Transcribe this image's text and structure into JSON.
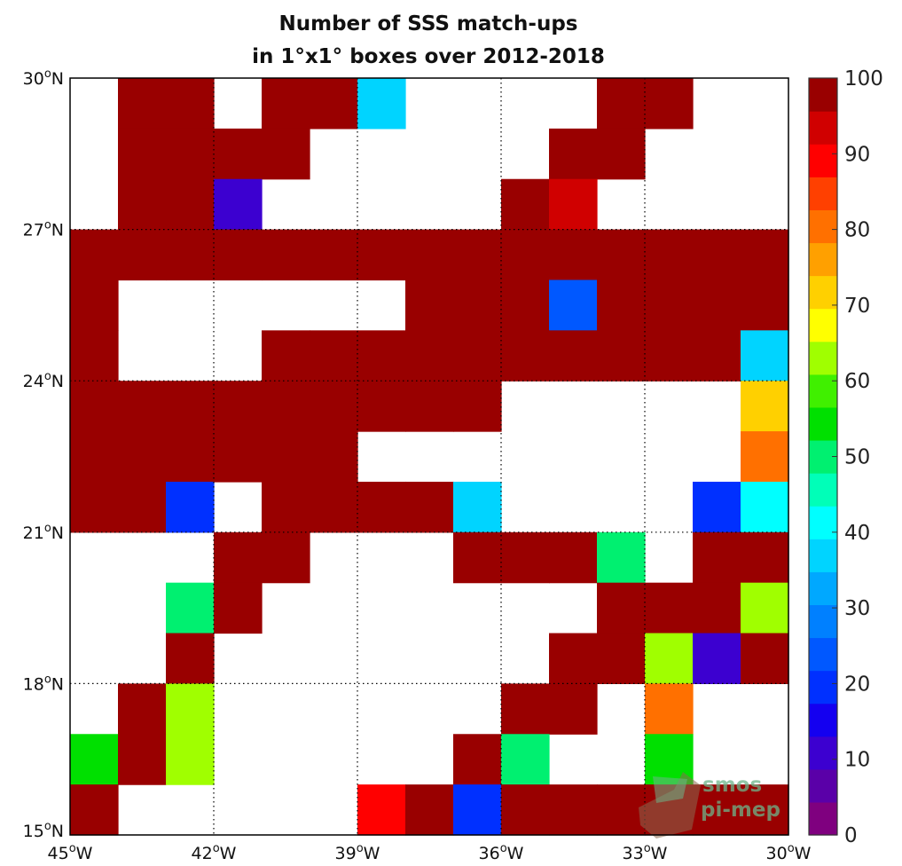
{
  "chart_data": {
    "type": "heatmap",
    "title": [
      "Number of SSS match-ups",
      "in 1°x1° boxes over 2012-2018"
    ],
    "xlabel": "",
    "ylabel": "",
    "x_range": [
      -45,
      -30
    ],
    "y_range": [
      15,
      30
    ],
    "grid": true,
    "x_ticks": [
      {
        "value": -45,
        "label": "45°W"
      },
      {
        "value": -42,
        "label": "42°W"
      },
      {
        "value": -39,
        "label": "39°W"
      },
      {
        "value": -36,
        "label": "36°W"
      },
      {
        "value": -33,
        "label": "33°W"
      },
      {
        "value": -30,
        "label": "30°W"
      }
    ],
    "y_ticks": [
      {
        "value": 15,
        "label": "15°N"
      },
      {
        "value": 18,
        "label": "18°N"
      },
      {
        "value": 21,
        "label": "21°N"
      },
      {
        "value": 24,
        "label": "24°N"
      },
      {
        "value": 27,
        "label": "27°N"
      },
      {
        "value": 30,
        "label": "30°N"
      }
    ],
    "colorbar": {
      "min": 0,
      "max": 100,
      "ticks": [
        0,
        10,
        20,
        30,
        40,
        50,
        60,
        70,
        80,
        90,
        100
      ],
      "colors": [
        "#7f007f",
        "#5a00a8",
        "#3c00d0",
        "#1400f0",
        "#0030ff",
        "#0058ff",
        "#0080ff",
        "#00a8ff",
        "#00d4ff",
        "#00ffff",
        "#00ffb8",
        "#00f070",
        "#00e000",
        "#40f000",
        "#a0ff00",
        "#ffff00",
        "#ffd000",
        "#ffa000",
        "#ff7000",
        "#ff4000",
        "#ff0000",
        "#d00000",
        "#990000"
      ]
    },
    "cell_note": "value = match-up count per 1°x1° box; lon/lat = lower-left corner; empty boxes omitted",
    "cells": [
      {
        "lon": -44,
        "lat": 29,
        "value": 100
      },
      {
        "lon": -43,
        "lat": 29,
        "value": 100
      },
      {
        "lon": -41,
        "lat": 29,
        "value": 100
      },
      {
        "lon": -40,
        "lat": 29,
        "value": 100
      },
      {
        "lon": -39,
        "lat": 29,
        "value": 38
      },
      {
        "lon": -34,
        "lat": 29,
        "value": 100
      },
      {
        "lon": -33,
        "lat": 29,
        "value": 100
      },
      {
        "lon": -44,
        "lat": 28,
        "value": 100
      },
      {
        "lon": -43,
        "lat": 28,
        "value": 100
      },
      {
        "lon": -42,
        "lat": 28,
        "value": 100
      },
      {
        "lon": -41,
        "lat": 28,
        "value": 100
      },
      {
        "lon": -35,
        "lat": 28,
        "value": 100
      },
      {
        "lon": -34,
        "lat": 28,
        "value": 100
      },
      {
        "lon": -44,
        "lat": 27,
        "value": 100
      },
      {
        "lon": -43,
        "lat": 27,
        "value": 100
      },
      {
        "lon": -42,
        "lat": 27,
        "value": 10
      },
      {
        "lon": -36,
        "lat": 27,
        "value": 100
      },
      {
        "lon": -35,
        "lat": 27,
        "value": 92
      },
      {
        "lon": -45,
        "lat": 26,
        "value": 100
      },
      {
        "lon": -44,
        "lat": 26,
        "value": 100
      },
      {
        "lon": -43,
        "lat": 26,
        "value": 100
      },
      {
        "lon": -42,
        "lat": 26,
        "value": 100
      },
      {
        "lon": -41,
        "lat": 26,
        "value": 100
      },
      {
        "lon": -40,
        "lat": 26,
        "value": 100
      },
      {
        "lon": -39,
        "lat": 26,
        "value": 100
      },
      {
        "lon": -38,
        "lat": 26,
        "value": 100
      },
      {
        "lon": -37,
        "lat": 26,
        "value": 100
      },
      {
        "lon": -36,
        "lat": 26,
        "value": 100
      },
      {
        "lon": -35,
        "lat": 26,
        "value": 100
      },
      {
        "lon": -34,
        "lat": 26,
        "value": 100
      },
      {
        "lon": -33,
        "lat": 26,
        "value": 100
      },
      {
        "lon": -32,
        "lat": 26,
        "value": 100
      },
      {
        "lon": -31,
        "lat": 26,
        "value": 100
      },
      {
        "lon": -45,
        "lat": 25,
        "value": 100
      },
      {
        "lon": -38,
        "lat": 25,
        "value": 100
      },
      {
        "lon": -37,
        "lat": 25,
        "value": 100
      },
      {
        "lon": -36,
        "lat": 25,
        "value": 100
      },
      {
        "lon": -35,
        "lat": 25,
        "value": 25
      },
      {
        "lon": -34,
        "lat": 25,
        "value": 100
      },
      {
        "lon": -33,
        "lat": 25,
        "value": 100
      },
      {
        "lon": -32,
        "lat": 25,
        "value": 100
      },
      {
        "lon": -31,
        "lat": 25,
        "value": 100
      },
      {
        "lon": -45,
        "lat": 24,
        "value": 100
      },
      {
        "lon": -41,
        "lat": 24,
        "value": 100
      },
      {
        "lon": -40,
        "lat": 24,
        "value": 100
      },
      {
        "lon": -39,
        "lat": 24,
        "value": 100
      },
      {
        "lon": -38,
        "lat": 24,
        "value": 100
      },
      {
        "lon": -37,
        "lat": 24,
        "value": 100
      },
      {
        "lon": -36,
        "lat": 24,
        "value": 100
      },
      {
        "lon": -35,
        "lat": 24,
        "value": 100
      },
      {
        "lon": -34,
        "lat": 24,
        "value": 100
      },
      {
        "lon": -33,
        "lat": 24,
        "value": 100
      },
      {
        "lon": -32,
        "lat": 24,
        "value": 100
      },
      {
        "lon": -31,
        "lat": 24,
        "value": 38
      },
      {
        "lon": -45,
        "lat": 23,
        "value": 100
      },
      {
        "lon": -44,
        "lat": 23,
        "value": 100
      },
      {
        "lon": -43,
        "lat": 23,
        "value": 100
      },
      {
        "lon": -42,
        "lat": 23,
        "value": 100
      },
      {
        "lon": -41,
        "lat": 23,
        "value": 100
      },
      {
        "lon": -40,
        "lat": 23,
        "value": 100
      },
      {
        "lon": -39,
        "lat": 23,
        "value": 100
      },
      {
        "lon": -38,
        "lat": 23,
        "value": 100
      },
      {
        "lon": -37,
        "lat": 23,
        "value": 100
      },
      {
        "lon": -31,
        "lat": 23,
        "value": 72
      },
      {
        "lon": -45,
        "lat": 22,
        "value": 100
      },
      {
        "lon": -44,
        "lat": 22,
        "value": 100
      },
      {
        "lon": -43,
        "lat": 22,
        "value": 100
      },
      {
        "lon": -42,
        "lat": 22,
        "value": 100
      },
      {
        "lon": -41,
        "lat": 22,
        "value": 100
      },
      {
        "lon": -40,
        "lat": 22,
        "value": 100
      },
      {
        "lon": -31,
        "lat": 22,
        "value": 80
      },
      {
        "lon": -45,
        "lat": 21,
        "value": 100
      },
      {
        "lon": -44,
        "lat": 21,
        "value": 100
      },
      {
        "lon": -43,
        "lat": 21,
        "value": 18
      },
      {
        "lon": -41,
        "lat": 21,
        "value": 100
      },
      {
        "lon": -40,
        "lat": 21,
        "value": 100
      },
      {
        "lon": -39,
        "lat": 21,
        "value": 100
      },
      {
        "lon": -38,
        "lat": 21,
        "value": 100
      },
      {
        "lon": -37,
        "lat": 21,
        "value": 38
      },
      {
        "lon": -32,
        "lat": 21,
        "value": 18
      },
      {
        "lon": -31,
        "lat": 21,
        "value": 42
      },
      {
        "lon": -42,
        "lat": 20,
        "value": 100
      },
      {
        "lon": -41,
        "lat": 20,
        "value": 100
      },
      {
        "lon": -37,
        "lat": 20,
        "value": 100
      },
      {
        "lon": -36,
        "lat": 20,
        "value": 100
      },
      {
        "lon": -35,
        "lat": 20,
        "value": 100
      },
      {
        "lon": -34,
        "lat": 20,
        "value": 48
      },
      {
        "lon": -32,
        "lat": 20,
        "value": 100
      },
      {
        "lon": -31,
        "lat": 20,
        "value": 100
      },
      {
        "lon": -43,
        "lat": 19,
        "value": 48
      },
      {
        "lon": -42,
        "lat": 19,
        "value": 100
      },
      {
        "lon": -34,
        "lat": 19,
        "value": 100
      },
      {
        "lon": -33,
        "lat": 19,
        "value": 100
      },
      {
        "lon": -32,
        "lat": 19,
        "value": 100
      },
      {
        "lon": -31,
        "lat": 19,
        "value": 62
      },
      {
        "lon": -43,
        "lat": 18,
        "value": 100
      },
      {
        "lon": -35,
        "lat": 18,
        "value": 100
      },
      {
        "lon": -34,
        "lat": 18,
        "value": 100
      },
      {
        "lon": -33,
        "lat": 18,
        "value": 62
      },
      {
        "lon": -32,
        "lat": 18,
        "value": 12
      },
      {
        "lon": -31,
        "lat": 18,
        "value": 100
      },
      {
        "lon": -44,
        "lat": 17,
        "value": 100
      },
      {
        "lon": -43,
        "lat": 17,
        "value": 62
      },
      {
        "lon": -36,
        "lat": 17,
        "value": 100
      },
      {
        "lon": -35,
        "lat": 17,
        "value": 100
      },
      {
        "lon": -33,
        "lat": 17,
        "value": 80
      },
      {
        "lon": -45,
        "lat": 16,
        "value": 55
      },
      {
        "lon": -44,
        "lat": 16,
        "value": 100
      },
      {
        "lon": -43,
        "lat": 16,
        "value": 62
      },
      {
        "lon": -37,
        "lat": 16,
        "value": 100
      },
      {
        "lon": -36,
        "lat": 16,
        "value": 48
      },
      {
        "lon": -33,
        "lat": 16,
        "value": 55
      },
      {
        "lon": -45,
        "lat": 15,
        "value": 100
      },
      {
        "lon": -39,
        "lat": 15,
        "value": 88
      },
      {
        "lon": -38,
        "lat": 15,
        "value": 100
      },
      {
        "lon": -37,
        "lat": 15,
        "value": 18
      },
      {
        "lon": -36,
        "lat": 15,
        "value": 100
      },
      {
        "lon": -35,
        "lat": 15,
        "value": 100
      },
      {
        "lon": -34,
        "lat": 15,
        "value": 100
      },
      {
        "lon": -33,
        "lat": 15,
        "value": 100
      },
      {
        "lon": -32,
        "lat": 15,
        "value": 100
      },
      {
        "lon": -31,
        "lat": 15,
        "value": 100
      }
    ]
  },
  "watermark": {
    "line1": "smos",
    "line2": "pi-mep"
  }
}
